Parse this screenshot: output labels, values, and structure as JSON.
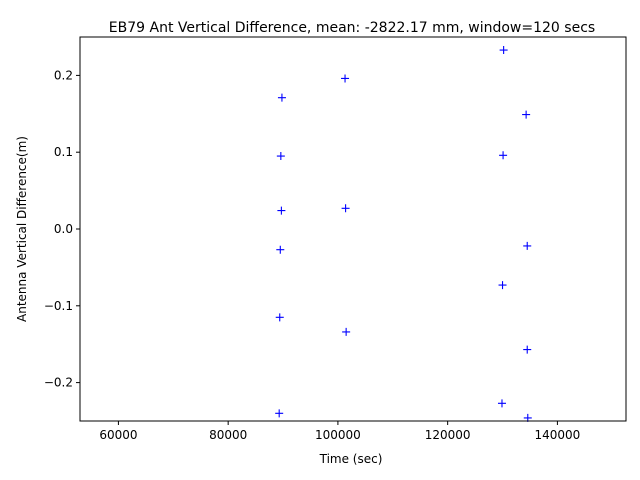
{
  "chart_data": {
    "type": "scatter",
    "title": "EB79 Ant Vertical Difference, mean: -2822.17 mm, window=120 secs",
    "xlabel": "Time (sec)",
    "ylabel": "Antenna Vertical Difference(m)",
    "xlim": [
      53000,
      152500
    ],
    "ylim": [
      -0.25,
      0.25
    ],
    "xticks": [
      60000,
      80000,
      100000,
      120000,
      140000
    ],
    "xtick_labels": [
      "60000",
      "80000",
      "100000",
      "120000",
      "140000"
    ],
    "yticks": [
      -0.2,
      -0.1,
      0.0,
      0.1,
      0.2
    ],
    "ytick_labels": [
      "−0.2",
      "−0.1",
      "0.0",
      "0.1",
      "0.2"
    ],
    "grid": false,
    "marker": "+",
    "marker_color": "#0000ff",
    "points": [
      {
        "x": 130200,
        "y": 0.233
      },
      {
        "x": 101300,
        "y": 0.196
      },
      {
        "x": 89800,
        "y": 0.171
      },
      {
        "x": 134300,
        "y": 0.149
      },
      {
        "x": 89600,
        "y": 0.095
      },
      {
        "x": 130100,
        "y": 0.096
      },
      {
        "x": 89700,
        "y": 0.024
      },
      {
        "x": 101400,
        "y": 0.027
      },
      {
        "x": 134500,
        "y": -0.022
      },
      {
        "x": 89500,
        "y": -0.027
      },
      {
        "x": 130000,
        "y": -0.073
      },
      {
        "x": 89400,
        "y": -0.115
      },
      {
        "x": 101500,
        "y": -0.134
      },
      {
        "x": 134500,
        "y": -0.157
      },
      {
        "x": 129900,
        "y": -0.227
      },
      {
        "x": 89300,
        "y": -0.24
      },
      {
        "x": 134600,
        "y": -0.246
      }
    ]
  }
}
